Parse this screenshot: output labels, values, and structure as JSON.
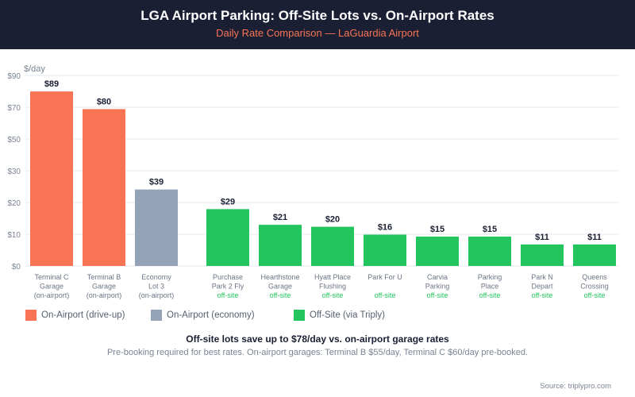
{
  "header": {
    "title": "LGA Airport Parking: Off-Site Lots vs. On-Airport Rates",
    "subtitle": "Daily Rate Comparison — LaGuardia Airport"
  },
  "colors": {
    "on_airport": "#f87455",
    "economy": "#94a3b8",
    "off_site": "#22c55e"
  },
  "chart_data": {
    "type": "bar",
    "ylabel": "$/day",
    "yticks": [
      "$0",
      "$10",
      "$20",
      "$30",
      "$50",
      "$70",
      "$90"
    ],
    "categories": [
      {
        "lines": [
          "Terminal C",
          "Garage",
          "(on-airport)"
        ],
        "tag": "",
        "group": "on_airport"
      },
      {
        "lines": [
          "Terminal B",
          "Garage",
          "(on-airport)"
        ],
        "tag": "",
        "group": "on_airport"
      },
      {
        "lines": [
          "Economy",
          "Lot 3",
          "(on-airport)"
        ],
        "tag": "",
        "group": "economy"
      },
      {
        "lines": [
          "Purchase",
          "Park 2 Fly"
        ],
        "tag": "off-site",
        "group": "off_site"
      },
      {
        "lines": [
          "Hearthstone",
          "Garage"
        ],
        "tag": "off-site",
        "group": "off_site"
      },
      {
        "lines": [
          "Hyatt Place",
          "Flushing"
        ],
        "tag": "off-site",
        "group": "off_site"
      },
      {
        "lines": [
          "Park For U",
          ""
        ],
        "tag": "off-site",
        "group": "off_site"
      },
      {
        "lines": [
          "Carvia",
          "Parking"
        ],
        "tag": "off-site",
        "group": "off_site"
      },
      {
        "lines": [
          "Parking",
          "Place"
        ],
        "tag": "off-site",
        "group": "off_site"
      },
      {
        "lines": [
          "Park N",
          "Depart"
        ],
        "tag": "off-site",
        "group": "off_site"
      },
      {
        "lines": [
          "Queens",
          "Crossing"
        ],
        "tag": "off-site",
        "group": "off_site"
      }
    ],
    "values": [
      89,
      80,
      39,
      29,
      21,
      20,
      16,
      15,
      15,
      11,
      11
    ],
    "value_labels": [
      "$89",
      "$80",
      "$39",
      "$29",
      "$21",
      "$20",
      "$16",
      "$15",
      "$15",
      "$11",
      "$11"
    ],
    "legend": [
      {
        "label": "On-Airport (drive-up)",
        "group": "on_airport"
      },
      {
        "label": "On-Airport (economy)",
        "group": "economy"
      },
      {
        "label": "Off-Site (via Triply)",
        "group": "off_site"
      }
    ],
    "legend_position": "bottom-left"
  },
  "note": "Off-site lots save up to $78/day vs. on-airport garage rates",
  "subnote": "Pre-booking required for best rates. On-airport garages: Terminal B $55/day, Terminal C $60/day pre-booked.",
  "source": "Source: triplypro.com"
}
